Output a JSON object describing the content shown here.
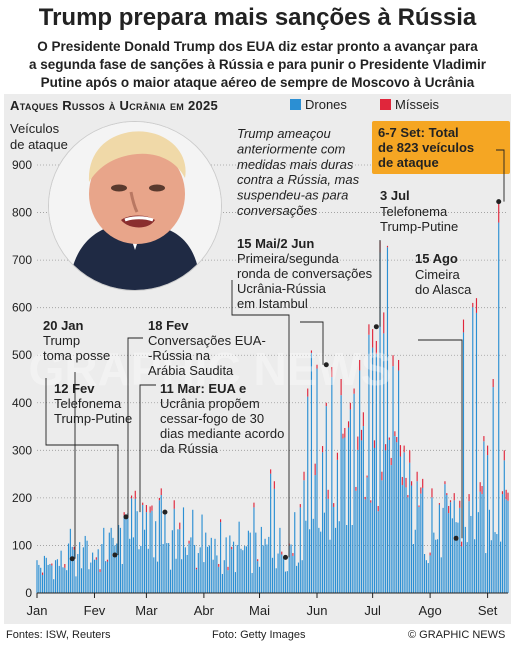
{
  "header": {
    "title": "Trump prepara mais sanções à Rússia",
    "subtitle_lines": [
      "O Presidente Donald Trump dos EUA diz estar pronto a avançar para",
      "a segunda fase de sanções à Rússia e para punir o Presidente Vladimir",
      "Putine após o maior ataque aéreo de sempre de Moscovo à Ucrânia"
    ]
  },
  "footer": {
    "sources": "Fontes: ISW, Reuters",
    "photo_credit": "Foto: Getty Images",
    "copyright": "© GRAPHIC NEWS"
  },
  "watermark": "GRAPHIC NEWS",
  "colors": {
    "drones": "#2b8fd3",
    "missiles": "#e0263b",
    "highlight": "#f5a623",
    "panel": "#ececec"
  },
  "chart_data": {
    "type": "bar",
    "stacked": true,
    "title": "Ataques Russos à Ucrânia em 2025",
    "ylabel_lines": [
      "Veículos",
      "de ataque"
    ],
    "ylim": [
      0,
      900
    ],
    "yticks": [
      0,
      100,
      200,
      300,
      400,
      500,
      600,
      700,
      800,
      900
    ],
    "xlim_day": [
      1,
      255
    ],
    "month_ticks": [
      {
        "label": "Jan",
        "day": 1
      },
      {
        "label": "Fev",
        "day": 32
      },
      {
        "label": "Mar",
        "day": 60
      },
      {
        "label": "Abr",
        "day": 91
      },
      {
        "label": "Mai",
        "day": 121
      },
      {
        "label": "Jun",
        "day": 152
      },
      {
        "label": "Jul",
        "day": 182
      },
      {
        "label": "Ago",
        "day": 213
      },
      {
        "label": "Set",
        "day": 244
      }
    ],
    "series": [
      {
        "name": "Drones",
        "color": "#2b8fd3"
      },
      {
        "name": "Mísseis",
        "color": "#e0263b"
      }
    ],
    "annotations": [
      {
        "date": "20 Jan",
        "text_lines": [
          "Trump",
          "toma posse"
        ],
        "day": 20,
        "value": 72
      },
      {
        "date": "12 Fev",
        "text_lines": [
          "Telefonema",
          "Trump-Putine"
        ],
        "day": 43,
        "value": 80
      },
      {
        "date": "18 Fev",
        "text_lines": [
          "Conversações EUA-",
          "-Rússia na",
          "Arábia Saudita"
        ],
        "day": 49,
        "value": 160
      },
      {
        "date": "11 Mar",
        "text_lines": [
          "11 Mar: EUA e",
          "Ucrânia propõem",
          "cessar-fogo de 30",
          "dias mediante acordo",
          "da Rússia"
        ],
        "day": 70,
        "value": 170
      },
      {
        "date": "15 Mai/2 Jun",
        "text_lines": [
          "Primeira/segunda",
          "ronda de conversações",
          "Ucrânia-Rússia",
          "em Istambul"
        ],
        "day": 135,
        "value": 75
      },
      {
        "date": "3 Jul",
        "text_lines": [
          "Telefonema",
          "Trump-Putine"
        ],
        "day": 184,
        "value": 560
      },
      {
        "date": "15 Ago",
        "text_lines": [
          "Cimeira",
          "do Alasca"
        ],
        "day": 227,
        "value": 115
      },
      {
        "date": "6-7 Set",
        "text_lines": [
          "6-7 Set: Total",
          "de 823 veículos",
          "de ataque"
        ],
        "day": 250,
        "value": 823
      }
    ],
    "note_lines": [
      "Trump ameaçou",
      "anteriormente com",
      "medidas mais duras",
      "contra a Rússia, mas",
      "suspendeu-as para",
      "conversações"
    ],
    "peak_value": 823
  }
}
